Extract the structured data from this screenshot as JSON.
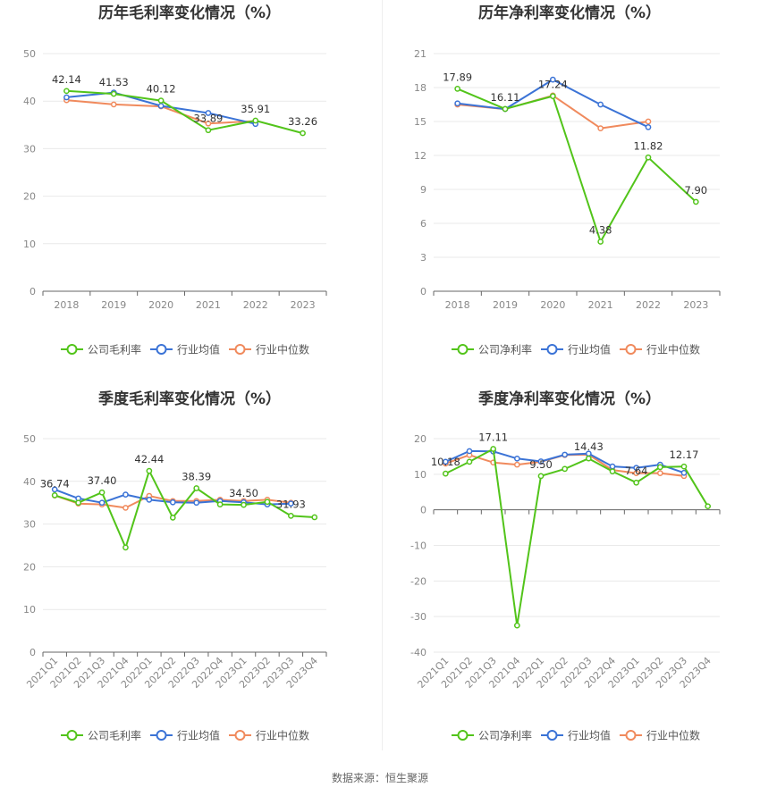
{
  "colors": {
    "company": "#52c41a",
    "industry_avg": "#3b73d6",
    "industry_median": "#f08a5d",
    "grid": "#e9e9e9",
    "axis": "#666666"
  },
  "legend_labels": {
    "gross": [
      "公司毛利率",
      "行业均值",
      "行业中位数"
    ],
    "net": [
      "公司净利率",
      "行业均值",
      "行业中位数"
    ]
  },
  "source_text": "数据来源：恒生聚源",
  "chart_data": [
    {
      "type": "line",
      "title": "历年毛利率变化情况（%）",
      "categories": [
        "2018",
        "2019",
        "2020",
        "2021",
        "2022",
        "2023"
      ],
      "ylim": [
        0,
        50
      ],
      "yticks": [
        0,
        10,
        20,
        30,
        40,
        50
      ],
      "grid": true,
      "legend_position": "bottom",
      "series": [
        {
          "name": "公司毛利率",
          "values": [
            42.14,
            41.53,
            40.12,
            33.89,
            35.91,
            33.26
          ],
          "labels": [
            "42.14",
            "41.53",
            "40.12",
            "33.89",
            "35.91",
            "33.26"
          ]
        },
        {
          "name": "行业均值",
          "values": [
            40.8,
            41.8,
            39.0,
            37.5,
            35.2,
            null
          ]
        },
        {
          "name": "行业中位数",
          "values": [
            40.2,
            39.3,
            38.9,
            35.3,
            35.8,
            null
          ]
        }
      ]
    },
    {
      "type": "line",
      "title": "历年净利率变化情况（%）",
      "categories": [
        "2018",
        "2019",
        "2020",
        "2021",
        "2022",
        "2023"
      ],
      "ylim": [
        0,
        21
      ],
      "yticks": [
        0,
        3,
        6,
        9,
        12,
        15,
        18,
        21
      ],
      "grid": true,
      "legend_position": "bottom",
      "series": [
        {
          "name": "公司净利率",
          "values": [
            17.89,
            16.11,
            17.24,
            4.38,
            11.82,
            7.9
          ],
          "labels": [
            "17.89",
            "16.11",
            "17.24",
            "4.38",
            "11.82",
            "7.90"
          ]
        },
        {
          "name": "行业均值",
          "values": [
            16.6,
            16.1,
            18.7,
            16.5,
            14.5,
            null
          ]
        },
        {
          "name": "行业中位数",
          "values": [
            16.5,
            16.1,
            17.3,
            14.4,
            15.0,
            null
          ]
        }
      ]
    },
    {
      "type": "line",
      "title": "季度毛利率变化情况（%）",
      "categories": [
        "2021Q1",
        "2021Q2",
        "2021Q3",
        "2021Q4",
        "2022Q1",
        "2022Q2",
        "2022Q3",
        "2022Q4",
        "2023Q1",
        "2023Q2",
        "2023Q3",
        "2023Q4"
      ],
      "ylim": [
        0,
        50
      ],
      "yticks": [
        0,
        10,
        20,
        30,
        40,
        50
      ],
      "grid": true,
      "legend_position": "bottom",
      "series": [
        {
          "name": "公司毛利率",
          "values": [
            36.74,
            35.0,
            37.4,
            24.5,
            42.44,
            31.5,
            38.39,
            34.6,
            34.5,
            35.2,
            31.93,
            31.6
          ],
          "labels": [
            "36.74",
            "",
            "37.40",
            "",
            "42.44",
            "",
            "38.39",
            "",
            "34.50",
            "",
            "31.93",
            ""
          ]
        },
        {
          "name": "行业均值",
          "values": [
            38.1,
            36.0,
            35.0,
            36.9,
            35.7,
            35.1,
            35.0,
            35.4,
            35.1,
            34.6,
            34.8,
            null
          ]
        },
        {
          "name": "行业中位数",
          "values": [
            36.7,
            34.8,
            34.6,
            33.8,
            36.6,
            35.4,
            35.4,
            35.7,
            35.4,
            35.7,
            35.0,
            null
          ]
        }
      ]
    },
    {
      "type": "line",
      "title": "季度净利率变化情况（%）",
      "categories": [
        "2021Q1",
        "2021Q2",
        "2021Q3",
        "2021Q4",
        "2022Q1",
        "2022Q2",
        "2022Q3",
        "2022Q4",
        "2023Q1",
        "2023Q2",
        "2023Q3",
        "2023Q4"
      ],
      "ylim": [
        -40,
        20
      ],
      "yticks": [
        -40,
        -30,
        -20,
        -10,
        0,
        10,
        20
      ],
      "grid": true,
      "legend_position": "bottom",
      "series": [
        {
          "name": "公司净利率",
          "values": [
            10.18,
            13.5,
            17.11,
            -32.5,
            9.5,
            11.5,
            14.43,
            10.8,
            7.64,
            12.0,
            12.17,
            1.0
          ],
          "labels": [
            "10.18",
            "",
            "17.11",
            "",
            "9.50",
            "",
            "14.43",
            "",
            "7.64",
            "",
            "12.17",
            ""
          ]
        },
        {
          "name": "行业均值",
          "values": [
            13.5,
            16.5,
            16.4,
            14.4,
            13.6,
            15.5,
            15.8,
            12.2,
            11.8,
            12.7,
            10.4,
            null
          ]
        },
        {
          "name": "行业中位数",
          "values": [
            13.0,
            15.4,
            13.3,
            12.7,
            13.5,
            15.4,
            15.5,
            11.2,
            10.3,
            10.3,
            9.5,
            null
          ]
        }
      ]
    }
  ]
}
